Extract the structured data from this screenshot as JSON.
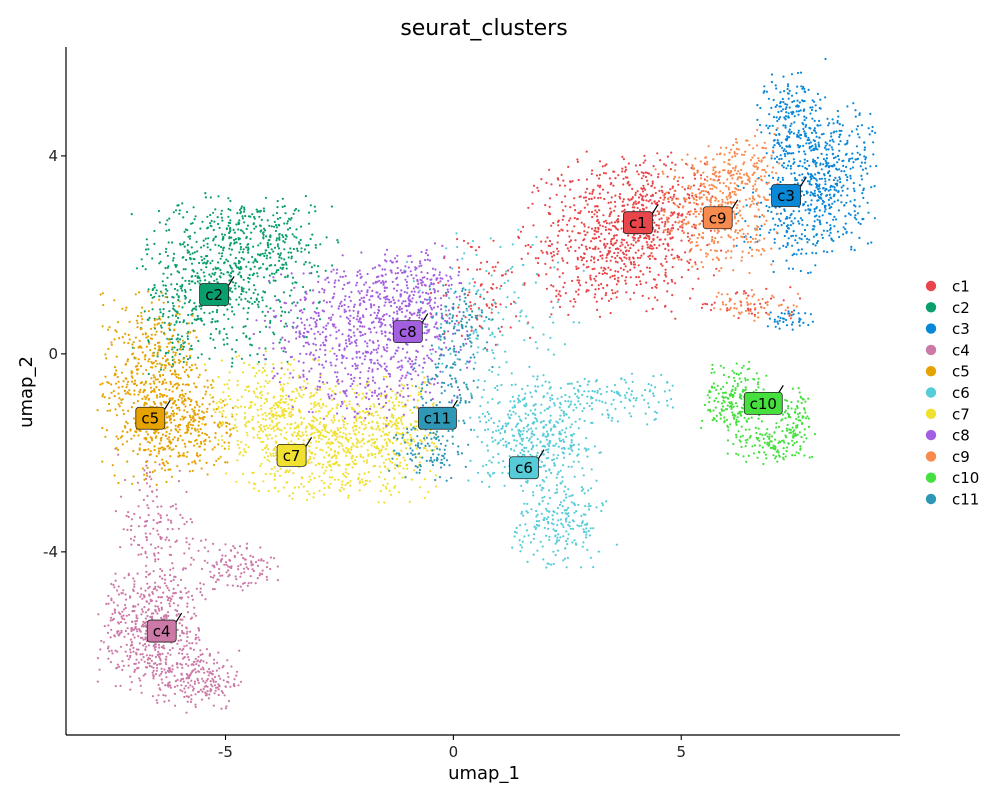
{
  "chart_data": {
    "type": "scatter",
    "title": "seurat_clusters",
    "xlabel": "umap_1",
    "ylabel": "umap_2",
    "xlim": [
      -8.5,
      9.8
    ],
    "ylim": [
      -7.7,
      6.2
    ],
    "x_ticks": [
      -5,
      0,
      5
    ],
    "y_ticks": [
      -4,
      0,
      4
    ],
    "x_tick_labels": [
      "-5",
      "0",
      "5"
    ],
    "y_tick_labels": [
      "-4",
      "0",
      "4"
    ],
    "grid": false,
    "legend_position": "right",
    "point_size": 1.1,
    "series": [
      {
        "name": "c1",
        "color": "#E8464A",
        "label": {
          "text": "c1",
          "x": 4.05,
          "y": 2.65
        },
        "regions": [
          {
            "cx": 3.4,
            "cy": 2.3,
            "sx": 0.9,
            "sy": 0.75,
            "n": 600
          },
          {
            "cx": 4.4,
            "cy": 2.8,
            "sx": 0.7,
            "sy": 0.6,
            "n": 300
          },
          {
            "cx": 0.7,
            "cy": 1.3,
            "sx": 0.55,
            "sy": 0.6,
            "n": 90
          },
          {
            "cx": 6.5,
            "cy": 1.0,
            "sx": 0.6,
            "sy": 0.2,
            "n": 40
          }
        ]
      },
      {
        "name": "c2",
        "color": "#0A9E6E",
        "label": {
          "text": "c2",
          "x": -5.25,
          "y": 1.2
        },
        "regions": [
          {
            "cx": -5.0,
            "cy": 1.5,
            "sx": 0.95,
            "sy": 0.8,
            "n": 600
          },
          {
            "cx": -4.2,
            "cy": 2.3,
            "sx": 0.8,
            "sy": 0.4,
            "n": 200
          },
          {
            "cx": -6.2,
            "cy": 0.6,
            "sx": 0.35,
            "sy": 0.5,
            "n": 80
          }
        ]
      },
      {
        "name": "c3",
        "color": "#0A88D8",
        "label": {
          "text": "c3",
          "x": 7.3,
          "y": 3.2
        },
        "regions": [
          {
            "cx": 8.1,
            "cy": 3.6,
            "sx": 0.55,
            "sy": 0.75,
            "n": 500
          },
          {
            "cx": 7.4,
            "cy": 4.8,
            "sx": 0.4,
            "sy": 0.45,
            "n": 170
          },
          {
            "cx": 7.3,
            "cy": 2.7,
            "sx": 0.5,
            "sy": 0.5,
            "n": 150
          },
          {
            "cx": 7.4,
            "cy": 0.7,
            "sx": 0.25,
            "sy": 0.12,
            "n": 40
          }
        ]
      },
      {
        "name": "c4",
        "color": "#CC79A7",
        "label": {
          "text": "c4",
          "x": -6.4,
          "y": -5.6
        },
        "regions": [
          {
            "cx": -6.6,
            "cy": -5.6,
            "sx": 0.55,
            "sy": 0.6,
            "n": 500
          },
          {
            "cx": -5.6,
            "cy": -6.6,
            "sx": 0.45,
            "sy": 0.3,
            "n": 200
          },
          {
            "cx": -6.5,
            "cy": -3.6,
            "sx": 0.45,
            "sy": 0.8,
            "n": 160
          },
          {
            "cx": -4.8,
            "cy": -4.3,
            "sx": 0.45,
            "sy": 0.25,
            "n": 120
          }
        ]
      },
      {
        "name": "c5",
        "color": "#E5A200",
        "label": {
          "text": "c5",
          "x": -6.65,
          "y": -1.3
        },
        "regions": [
          {
            "cx": -6.6,
            "cy": -0.7,
            "sx": 0.55,
            "sy": 0.9,
            "n": 600
          },
          {
            "cx": -5.7,
            "cy": -1.5,
            "sx": 0.5,
            "sy": 0.5,
            "n": 200
          }
        ]
      },
      {
        "name": "c6",
        "color": "#56CCD8",
        "label": {
          "text": "c6",
          "x": 1.55,
          "y": -2.3
        },
        "regions": [
          {
            "cx": 1.8,
            "cy": -1.7,
            "sx": 0.7,
            "sy": 0.5,
            "n": 400
          },
          {
            "cx": 2.3,
            "cy": -3.4,
            "sx": 0.5,
            "sy": 0.5,
            "n": 220
          },
          {
            "cx": 3.5,
            "cy": -0.9,
            "sx": 0.7,
            "sy": 0.25,
            "n": 120
          },
          {
            "cx": 0.9,
            "cy": 0.6,
            "sx": 0.9,
            "sy": 0.9,
            "n": 160
          }
        ]
      },
      {
        "name": "c7",
        "color": "#F0E030",
        "label": {
          "text": "c7",
          "x": -3.55,
          "y": -2.05
        },
        "regions": [
          {
            "cx": -2.7,
            "cy": -1.8,
            "sx": 1.1,
            "sy": 0.55,
            "n": 700
          },
          {
            "cx": -4.0,
            "cy": -1.0,
            "sx": 0.7,
            "sy": 0.5,
            "n": 250
          },
          {
            "cx": -1.3,
            "cy": -1.5,
            "sx": 0.5,
            "sy": 0.5,
            "n": 150
          }
        ]
      },
      {
        "name": "c8",
        "color": "#A45EE0",
        "label": {
          "text": "c8",
          "x": -1.0,
          "y": 0.45
        },
        "regions": [
          {
            "cx": -1.6,
            "cy": 0.3,
            "sx": 0.9,
            "sy": 0.8,
            "n": 600
          },
          {
            "cx": -0.9,
            "cy": 1.3,
            "sx": 0.5,
            "sy": 0.5,
            "n": 200
          },
          {
            "cx": -3.1,
            "cy": 0.4,
            "sx": 0.6,
            "sy": 0.6,
            "n": 150
          }
        ]
      },
      {
        "name": "c9",
        "color": "#F98A4E",
        "label": {
          "text": "c9",
          "x": 5.8,
          "y": 2.75
        },
        "regions": [
          {
            "cx": 5.8,
            "cy": 2.9,
            "sx": 0.65,
            "sy": 0.6,
            "n": 400
          },
          {
            "cx": 6.3,
            "cy": 3.8,
            "sx": 0.4,
            "sy": 0.35,
            "n": 100
          },
          {
            "cx": 6.6,
            "cy": 1.0,
            "sx": 0.5,
            "sy": 0.15,
            "n": 60
          }
        ]
      },
      {
        "name": "c10",
        "color": "#45E03E",
        "label": {
          "text": "c10",
          "x": 6.8,
          "y": -1.0
        },
        "regions": [
          {
            "cx": 6.2,
            "cy": -0.9,
            "sx": 0.35,
            "sy": 0.35,
            "n": 200
          },
          {
            "cx": 7.0,
            "cy": -1.85,
            "sx": 0.45,
            "sy": 0.18,
            "n": 120
          },
          {
            "cx": 7.5,
            "cy": -1.3,
            "sx": 0.2,
            "sy": 0.3,
            "n": 80
          }
        ]
      },
      {
        "name": "c11",
        "color": "#2E97B5",
        "label": {
          "text": "c11",
          "x": -0.35,
          "y": -1.3
        },
        "regions": [
          {
            "cx": -0.2,
            "cy": -0.6,
            "sx": 0.35,
            "sy": 0.9,
            "n": 150
          },
          {
            "cx": -0.6,
            "cy": -1.9,
            "sx": 0.4,
            "sy": 0.35,
            "n": 100
          },
          {
            "cx": 0.35,
            "cy": 0.6,
            "sx": 0.3,
            "sy": 0.4,
            "n": 60
          }
        ]
      }
    ]
  }
}
